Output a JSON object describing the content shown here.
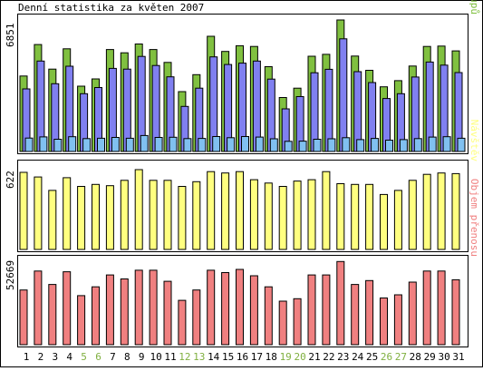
{
  "title": "Denní statistika za květen 2007",
  "colors": {
    "background": "#ffffff",
    "frame": "#000000",
    "hits": "#80c040",
    "files": "#8080f0",
    "pages": "#80c0f0",
    "visits": "#ffff80",
    "kbytes": "#f08080",
    "weekday_label": "#000000",
    "weekend_label": "#80b040"
  },
  "chart_data": [
    {
      "type": "bar",
      "panel": "hits-files-pages",
      "max_label": "6851",
      "ylim": [
        0,
        6851
      ],
      "legend_position": "right-vertical",
      "legend": [
        {
          "name": "Stránek",
          "color": "#80c0f0"
        },
        {
          "name": "/",
          "color": "#000000"
        },
        {
          "name": "Souborů",
          "color": "#8080f0"
        },
        {
          "name": "/",
          "color": "#000000"
        },
        {
          "name": "Přístupů",
          "color": "#80c040"
        }
      ],
      "categories": [
        "1",
        "2",
        "3",
        "4",
        "5",
        "6",
        "7",
        "8",
        "9",
        "10",
        "11",
        "12",
        "13",
        "14",
        "15",
        "16",
        "17",
        "18",
        "19",
        "20",
        "21",
        "22",
        "23",
        "24",
        "25",
        "26",
        "27",
        "28",
        "29",
        "30",
        "31"
      ],
      "series": [
        {
          "name": "Přístupů",
          "color": "#80c040",
          "values": [
            3930,
            5570,
            4290,
            5350,
            3400,
            3780,
            5310,
            5140,
            5600,
            5310,
            4640,
            3120,
            4000,
            6000,
            5210,
            5510,
            5470,
            4420,
            2810,
            3300,
            4960,
            5060,
            6850,
            4970,
            4230,
            3370,
            3690,
            4450,
            5470,
            5490,
            5240
          ]
        },
        {
          "name": "Souborů",
          "color": "#8080f0",
          "values": [
            3260,
            4710,
            3530,
            4440,
            3010,
            3330,
            4330,
            4290,
            4950,
            4480,
            3890,
            2350,
            3300,
            4930,
            4530,
            4600,
            4710,
            3770,
            2220,
            2860,
            4100,
            4280,
            5870,
            4160,
            3590,
            2760,
            3010,
            3880,
            4660,
            4500,
            4110
          ]
        },
        {
          "name": "Stránek",
          "color": "#80c0f0",
          "values": [
            700,
            760,
            640,
            770,
            670,
            690,
            730,
            690,
            830,
            730,
            740,
            670,
            680,
            780,
            720,
            780,
            750,
            660,
            530,
            540,
            640,
            660,
            720,
            620,
            680,
            590,
            620,
            670,
            750,
            770,
            690
          ]
        }
      ]
    },
    {
      "type": "bar",
      "panel": "visits",
      "max_label": "622",
      "ylim": [
        0,
        622
      ],
      "legend_position": "right-vertical",
      "legend": [
        {
          "name": "Návštěv",
          "color": "#ffff80"
        }
      ],
      "categories": [
        "1",
        "2",
        "3",
        "4",
        "5",
        "6",
        "7",
        "8",
        "9",
        "10",
        "11",
        "12",
        "13",
        "14",
        "15",
        "16",
        "17",
        "18",
        "19",
        "20",
        "21",
        "22",
        "23",
        "24",
        "25",
        "26",
        "27",
        "28",
        "29",
        "30",
        "31"
      ],
      "series": [
        {
          "name": "Návštěv",
          "color": "#ffff80",
          "values": [
            575,
            540,
            440,
            535,
            470,
            485,
            475,
            515,
            595,
            515,
            515,
            470,
            505,
            580,
            570,
            580,
            520,
            495,
            470,
            510,
            520,
            580,
            490,
            485,
            485,
            410,
            440,
            515,
            560,
            570,
            565
          ]
        }
      ]
    },
    {
      "type": "bar",
      "panel": "kbytes",
      "max_label": "52669",
      "ylim": [
        0,
        52669
      ],
      "legend_position": "right-vertical",
      "legend": [
        {
          "name": "Objem přenosu",
          "color": "#f08080"
        }
      ],
      "categories": [
        "1",
        "2",
        "3",
        "4",
        "5",
        "6",
        "7",
        "8",
        "9",
        "10",
        "11",
        "12",
        "13",
        "14",
        "15",
        "16",
        "17",
        "18",
        "19",
        "20",
        "21",
        "22",
        "23",
        "24",
        "25",
        "26",
        "27",
        "28",
        "29",
        "30",
        "31"
      ],
      "series": [
        {
          "name": "Objem přenosu",
          "color": "#f08080",
          "values": [
            34500,
            46500,
            38000,
            46000,
            31000,
            36500,
            44000,
            41500,
            47000,
            47000,
            40000,
            28000,
            34500,
            47000,
            45500,
            47500,
            43500,
            36500,
            27500,
            29000,
            44000,
            44000,
            52500,
            38000,
            40500,
            29500,
            31500,
            39500,
            46500,
            46500,
            41000
          ]
        }
      ]
    }
  ],
  "x_axis": {
    "labels": [
      "1",
      "2",
      "3",
      "4",
      "5",
      "6",
      "7",
      "8",
      "9",
      "10",
      "11",
      "12",
      "13",
      "14",
      "15",
      "16",
      "17",
      "18",
      "19",
      "20",
      "21",
      "22",
      "23",
      "24",
      "25",
      "26",
      "27",
      "28",
      "29",
      "30",
      "31"
    ],
    "weekend_days": [
      "5",
      "6",
      "12",
      "13",
      "19",
      "20",
      "26",
      "27"
    ]
  }
}
